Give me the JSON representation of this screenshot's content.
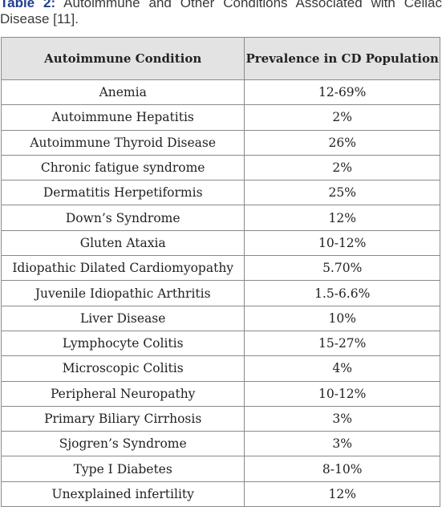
{
  "caption": {
    "label": "Table 2:",
    "text": " Autoimmune and Other Conditions Associated with Celiac Disease [11]."
  },
  "table": {
    "headers": [
      "Autoimmune Condition",
      "Prevalence in CD Population"
    ],
    "rows": [
      [
        "Anemia",
        "12-69%"
      ],
      [
        "Autoimmune Hepatitis",
        "2%"
      ],
      [
        "Autoimmune Thyroid Disease",
        "26%"
      ],
      [
        "Chronic fatigue syndrome",
        "2%"
      ],
      [
        "Dermatitis Herpetiformis",
        "25%"
      ],
      [
        "Down’s Syndrome",
        "12%"
      ],
      [
        "Gluten Ataxia",
        "10-12%"
      ],
      [
        "Idiopathic Dilated Cardiomyopathy",
        "5.70%"
      ],
      [
        "Juvenile Idiopathic Arthritis",
        "1.5-6.6%"
      ],
      [
        "Liver Disease",
        "10%"
      ],
      [
        "Lymphocyte Colitis",
        "15-27%"
      ],
      [
        "Microscopic Colitis",
        "4%"
      ],
      [
        "Peripheral Neuropathy",
        "10-12%"
      ],
      [
        "Primary Biliary Cirrhosis",
        "3%"
      ],
      [
        "Sjogren’s Syndrome",
        "3%"
      ],
      [
        "Type I Diabetes",
        "8-10%"
      ],
      [
        "Unexplained infertility",
        "12%"
      ]
    ]
  }
}
